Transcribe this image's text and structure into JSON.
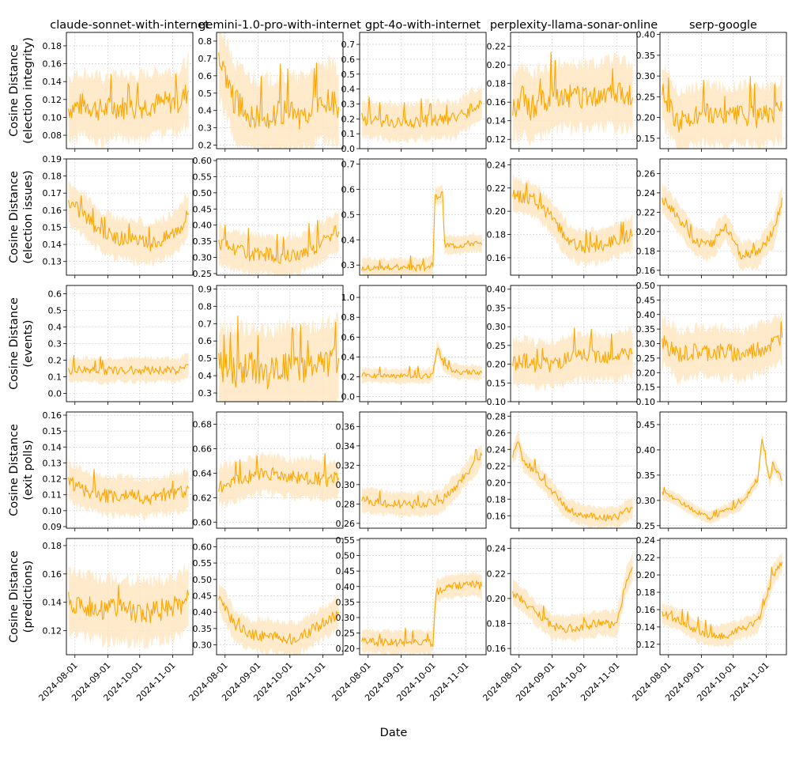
{
  "figure": {
    "xlabel": "Date",
    "columns": [
      "claude-sonnet-with-internet",
      "gemini-1.0-pro-with-internet",
      "gpt-4o-with-internet",
      "perplexity-llama-sonar-online",
      "serp-google"
    ],
    "rows": [
      "Cosine Distance\n(election integrity)",
      "Cosine Distance\n(election issues)",
      "Cosine Distance\n(events)",
      "Cosine Distance\n(exit polls)",
      "Cosine Distance\n(predictions)"
    ],
    "x_ticks": [
      "2024-08-01",
      "2024-09-01",
      "2024-10-01",
      "2024-11-01"
    ],
    "line_color": "#FFA500",
    "band_color": "#FFE8C2"
  },
  "chart_data": [
    {
      "type": "line",
      "col": 0,
      "row": 0,
      "ylim": [
        0.065,
        0.195
      ],
      "yticks": [
        "0.08",
        "0.10",
        "0.12",
        "0.14",
        "0.16",
        "0.18"
      ],
      "x": [
        "2024-07-26",
        "2024-08-10",
        "2024-08-25",
        "2024-09-09",
        "2024-09-24",
        "2024-10-09",
        "2024-10-24",
        "2024-11-08",
        "2024-11-16"
      ],
      "y": [
        0.11,
        0.115,
        0.108,
        0.112,
        0.11,
        0.114,
        0.116,
        0.118,
        0.13
      ],
      "band": 0.03
    },
    {
      "type": "line",
      "col": 1,
      "row": 0,
      "ylim": [
        0.18,
        0.85
      ],
      "yticks": [
        "0.2",
        "0.3",
        "0.4",
        "0.5",
        "0.6",
        "0.7",
        "0.8"
      ],
      "x": [
        "2024-07-26",
        "2024-08-10",
        "2024-08-25",
        "2024-09-09",
        "2024-09-24",
        "2024-10-09",
        "2024-10-24",
        "2024-11-08",
        "2024-11-16"
      ],
      "y": [
        0.7,
        0.45,
        0.38,
        0.36,
        0.38,
        0.37,
        0.42,
        0.45,
        0.42
      ],
      "band": 0.18
    },
    {
      "type": "line",
      "col": 2,
      "row": 0,
      "ylim": [
        0.0,
        0.78
      ],
      "yticks": [
        "0.0",
        "0.1",
        "0.2",
        "0.3",
        "0.4",
        "0.5",
        "0.6",
        "0.7"
      ],
      "x": [
        "2024-07-26",
        "2024-08-10",
        "2024-08-25",
        "2024-09-09",
        "2024-09-24",
        "2024-10-09",
        "2024-10-24",
        "2024-11-08",
        "2024-11-16"
      ],
      "y": [
        0.2,
        0.19,
        0.18,
        0.18,
        0.19,
        0.19,
        0.2,
        0.28,
        0.3
      ],
      "band": 0.1
    },
    {
      "type": "line",
      "col": 3,
      "row": 0,
      "ylim": [
        0.11,
        0.235
      ],
      "yticks": [
        "0.12",
        "0.14",
        "0.16",
        "0.18",
        "0.20",
        "0.22"
      ],
      "x": [
        "2024-07-26",
        "2024-08-05",
        "2024-08-10",
        "2024-09-01",
        "2024-09-15",
        "2024-10-01",
        "2024-10-15",
        "2024-11-01",
        "2024-11-16"
      ],
      "y": [
        0.155,
        0.165,
        0.152,
        0.165,
        0.168,
        0.165,
        0.168,
        0.17,
        0.165
      ],
      "band": 0.03
    },
    {
      "type": "line",
      "col": 4,
      "row": 0,
      "ylim": [
        0.125,
        0.405
      ],
      "yticks": [
        "0.15",
        "0.20",
        "0.25",
        "0.30",
        "0.35",
        "0.40"
      ],
      "x": [
        "2024-07-26",
        "2024-08-10",
        "2024-08-25",
        "2024-09-09",
        "2024-09-24",
        "2024-10-09",
        "2024-10-24",
        "2024-11-08",
        "2024-11-16"
      ],
      "y": [
        0.26,
        0.19,
        0.2,
        0.21,
        0.2,
        0.21,
        0.2,
        0.21,
        0.215
      ],
      "band": 0.06
    },
    {
      "type": "line",
      "col": 0,
      "row": 1,
      "ylim": [
        0.122,
        0.19
      ],
      "yticks": [
        "0.13",
        "0.14",
        "0.15",
        "0.16",
        "0.17",
        "0.18",
        "0.19"
      ],
      "x": [
        "2024-07-26",
        "2024-08-10",
        "2024-08-25",
        "2024-09-09",
        "2024-09-24",
        "2024-10-09",
        "2024-10-24",
        "2024-11-08",
        "2024-11-16"
      ],
      "y": [
        0.165,
        0.157,
        0.148,
        0.144,
        0.142,
        0.14,
        0.143,
        0.15,
        0.158
      ],
      "band": 0.01
    },
    {
      "type": "line",
      "col": 1,
      "row": 1,
      "ylim": [
        0.245,
        0.605
      ],
      "yticks": [
        "0.25",
        "0.30",
        "0.35",
        "0.40",
        "0.45",
        "0.50",
        "0.55",
        "0.60"
      ],
      "x": [
        "2024-07-26",
        "2024-08-10",
        "2024-08-25",
        "2024-09-09",
        "2024-09-24",
        "2024-10-09",
        "2024-10-24",
        "2024-11-08",
        "2024-11-16"
      ],
      "y": [
        0.34,
        0.32,
        0.31,
        0.31,
        0.3,
        0.31,
        0.33,
        0.37,
        0.38
      ],
      "band": 0.05
    },
    {
      "type": "line",
      "col": 2,
      "row": 1,
      "ylim": [
        0.26,
        0.72
      ],
      "yticks": [
        "0.3",
        "0.4",
        "0.5",
        "0.6",
        "0.7"
      ],
      "x": [
        "2024-07-26",
        "2024-08-10",
        "2024-08-25",
        "2024-09-09",
        "2024-09-24",
        "2024-10-01",
        "2024-10-03",
        "2024-10-10",
        "2024-10-12",
        "2024-10-24",
        "2024-11-08",
        "2024-11-16"
      ],
      "y": [
        0.29,
        0.29,
        0.29,
        0.29,
        0.29,
        0.3,
        0.57,
        0.58,
        0.38,
        0.38,
        0.39,
        0.38
      ],
      "band": 0.03
    },
    {
      "type": "line",
      "col": 3,
      "row": 1,
      "ylim": [
        0.145,
        0.245
      ],
      "yticks": [
        "0.16",
        "0.18",
        "0.20",
        "0.22",
        "0.24"
      ],
      "x": [
        "2024-07-26",
        "2024-08-05",
        "2024-08-15",
        "2024-09-01",
        "2024-09-15",
        "2024-10-01",
        "2024-10-15",
        "2024-11-01",
        "2024-11-16"
      ],
      "y": [
        0.215,
        0.212,
        0.21,
        0.195,
        0.175,
        0.168,
        0.17,
        0.175,
        0.18
      ],
      "band": 0.012
    },
    {
      "type": "line",
      "col": 4,
      "row": 1,
      "ylim": [
        0.155,
        0.275
      ],
      "yticks": [
        "0.16",
        "0.18",
        "0.20",
        "0.22",
        "0.24",
        "0.26"
      ],
      "x": [
        "2024-07-26",
        "2024-08-10",
        "2024-08-25",
        "2024-09-09",
        "2024-09-24",
        "2024-10-09",
        "2024-10-24",
        "2024-11-08",
        "2024-11-16"
      ],
      "y": [
        0.235,
        0.215,
        0.19,
        0.185,
        0.205,
        0.175,
        0.178,
        0.2,
        0.235
      ],
      "band": 0.012
    },
    {
      "type": "line",
      "col": 0,
      "row": 2,
      "ylim": [
        -0.05,
        0.65
      ],
      "yticks": [
        "0.0",
        "0.1",
        "0.2",
        "0.3",
        "0.4",
        "0.5",
        "0.6"
      ],
      "x": [
        "2024-07-26",
        "2024-08-10",
        "2024-08-25",
        "2024-09-09",
        "2024-09-24",
        "2024-10-09",
        "2024-10-24",
        "2024-11-08",
        "2024-11-16"
      ],
      "y": [
        0.14,
        0.14,
        0.14,
        0.14,
        0.14,
        0.14,
        0.14,
        0.14,
        0.17
      ],
      "band": 0.06
    },
    {
      "type": "line",
      "col": 1,
      "row": 2,
      "ylim": [
        0.25,
        0.92
      ],
      "yticks": [
        "0.3",
        "0.4",
        "0.5",
        "0.6",
        "0.7",
        "0.8",
        "0.9"
      ],
      "x": [
        "2024-07-26",
        "2024-08-10",
        "2024-08-25",
        "2024-09-09",
        "2024-09-24",
        "2024-10-09",
        "2024-10-24",
        "2024-11-08",
        "2024-11-16"
      ],
      "y": [
        0.45,
        0.42,
        0.45,
        0.4,
        0.45,
        0.43,
        0.45,
        0.47,
        0.5
      ],
      "band": 0.2
    },
    {
      "type": "line",
      "col": 2,
      "row": 2,
      "ylim": [
        -0.05,
        1.12
      ],
      "yticks": [
        "0.0",
        "0.2",
        "0.4",
        "0.6",
        "0.8",
        "1.0"
      ],
      "x": [
        "2024-07-26",
        "2024-08-10",
        "2024-08-25",
        "2024-09-09",
        "2024-09-24",
        "2024-10-01",
        "2024-10-05",
        "2024-10-12",
        "2024-10-24",
        "2024-11-08",
        "2024-11-16"
      ],
      "y": [
        0.22,
        0.21,
        0.21,
        0.21,
        0.21,
        0.22,
        0.5,
        0.3,
        0.25,
        0.25,
        0.24
      ],
      "band": 0.06
    },
    {
      "type": "line",
      "col": 3,
      "row": 2,
      "ylim": [
        0.1,
        0.41
      ],
      "yticks": [
        "0.10",
        "0.15",
        "0.20",
        "0.25",
        "0.30",
        "0.35",
        "0.40"
      ],
      "x": [
        "2024-07-26",
        "2024-08-05",
        "2024-08-15",
        "2024-09-01",
        "2024-09-15",
        "2024-10-01",
        "2024-10-15",
        "2024-11-01",
        "2024-11-16"
      ],
      "y": [
        0.2,
        0.21,
        0.2,
        0.2,
        0.21,
        0.22,
        0.22,
        0.22,
        0.23
      ],
      "band": 0.05
    },
    {
      "type": "line",
      "col": 4,
      "row": 2,
      "ylim": [
        0.1,
        0.5
      ],
      "yticks": [
        "0.10",
        "0.15",
        "0.20",
        "0.25",
        "0.30",
        "0.35",
        "0.40",
        "0.45",
        "0.50"
      ],
      "x": [
        "2024-07-26",
        "2024-08-10",
        "2024-08-25",
        "2024-09-09",
        "2024-09-24",
        "2024-10-09",
        "2024-10-24",
        "2024-11-08",
        "2024-11-16"
      ],
      "y": [
        0.31,
        0.26,
        0.27,
        0.27,
        0.27,
        0.26,
        0.28,
        0.3,
        0.32
      ],
      "band": 0.07
    },
    {
      "type": "line",
      "col": 0,
      "row": 3,
      "ylim": [
        0.089,
        0.162
      ],
      "yticks": [
        "0.09",
        "0.10",
        "0.11",
        "0.12",
        "0.13",
        "0.14",
        "0.15",
        "0.16"
      ],
      "x": [
        "2024-07-26",
        "2024-08-10",
        "2024-08-25",
        "2024-09-09",
        "2024-09-24",
        "2024-10-09",
        "2024-10-24",
        "2024-11-08",
        "2024-11-16"
      ],
      "y": [
        0.118,
        0.113,
        0.11,
        0.109,
        0.109,
        0.108,
        0.11,
        0.112,
        0.114
      ],
      "band": 0.01
    },
    {
      "type": "line",
      "col": 1,
      "row": 3,
      "ylim": [
        0.595,
        0.69
      ],
      "yticks": [
        "0.60",
        "0.62",
        "0.64",
        "0.66",
        "0.68"
      ],
      "x": [
        "2024-07-26",
        "2024-08-10",
        "2024-08-25",
        "2024-09-09",
        "2024-09-24",
        "2024-10-09",
        "2024-10-24",
        "2024-11-08",
        "2024-11-16"
      ],
      "y": [
        0.63,
        0.632,
        0.638,
        0.64,
        0.637,
        0.636,
        0.636,
        0.634,
        0.636
      ],
      "band": 0.013
    },
    {
      "type": "line",
      "col": 2,
      "row": 3,
      "ylim": [
        0.255,
        0.375
      ],
      "yticks": [
        "0.26",
        "0.28",
        "0.30",
        "0.32",
        "0.34",
        "0.36"
      ],
      "x": [
        "2024-07-26",
        "2024-08-10",
        "2024-08-25",
        "2024-09-09",
        "2024-09-24",
        "2024-10-09",
        "2024-10-24",
        "2024-11-08",
        "2024-11-16"
      ],
      "y": [
        0.285,
        0.282,
        0.28,
        0.28,
        0.28,
        0.283,
        0.3,
        0.32,
        0.33
      ],
      "band": 0.01
    },
    {
      "type": "line",
      "col": 3,
      "row": 3,
      "ylim": [
        0.145,
        0.285
      ],
      "yticks": [
        "0.16",
        "0.18",
        "0.20",
        "0.22",
        "0.24",
        "0.26",
        "0.28"
      ],
      "x": [
        "2024-07-26",
        "2024-07-31",
        "2024-08-05",
        "2024-08-15",
        "2024-09-01",
        "2024-09-15",
        "2024-10-01",
        "2024-10-15",
        "2024-11-01",
        "2024-11-10",
        "2024-11-16"
      ],
      "y": [
        0.23,
        0.25,
        0.225,
        0.215,
        0.19,
        0.168,
        0.16,
        0.158,
        0.158,
        0.165,
        0.17
      ],
      "band": 0.01
    },
    {
      "type": "line",
      "col": 4,
      "row": 3,
      "ylim": [
        0.245,
        0.475
      ],
      "yticks": [
        "0.25",
        "0.30",
        "0.35",
        "0.40",
        "0.45"
      ],
      "x": [
        "2024-07-26",
        "2024-08-10",
        "2024-08-25",
        "2024-09-09",
        "2024-09-24",
        "2024-10-09",
        "2024-10-24",
        "2024-10-28",
        "2024-11-04",
        "2024-11-08",
        "2024-11-16"
      ],
      "y": [
        0.315,
        0.3,
        0.28,
        0.265,
        0.28,
        0.295,
        0.34,
        0.42,
        0.34,
        0.37,
        0.34
      ],
      "band": 0.01
    },
    {
      "type": "line",
      "col": 0,
      "row": 4,
      "ylim": [
        0.103,
        0.185
      ],
      "yticks": [
        "0.12",
        "0.14",
        "0.16",
        "0.18"
      ],
      "x": [
        "2024-07-26",
        "2024-08-10",
        "2024-08-25",
        "2024-09-09",
        "2024-09-24",
        "2024-10-09",
        "2024-10-24",
        "2024-11-08",
        "2024-11-16"
      ],
      "y": [
        0.14,
        0.138,
        0.135,
        0.134,
        0.134,
        0.133,
        0.135,
        0.138,
        0.145
      ],
      "band": 0.018
    },
    {
      "type": "line",
      "col": 1,
      "row": 4,
      "ylim": [
        0.27,
        0.625
      ],
      "yticks": [
        "0.30",
        "0.35",
        "0.40",
        "0.45",
        "0.50",
        "0.55",
        "0.60"
      ],
      "x": [
        "2024-07-26",
        "2024-08-10",
        "2024-08-25",
        "2024-09-09",
        "2024-09-24",
        "2024-10-09",
        "2024-10-24",
        "2024-11-08",
        "2024-11-16"
      ],
      "y": [
        0.45,
        0.36,
        0.33,
        0.33,
        0.32,
        0.32,
        0.35,
        0.38,
        0.4
      ],
      "band": 0.04
    },
    {
      "type": "line",
      "col": 2,
      "row": 4,
      "ylim": [
        0.18,
        0.555
      ],
      "yticks": [
        "0.20",
        "0.25",
        "0.30",
        "0.35",
        "0.40",
        "0.45",
        "0.50",
        "0.55"
      ],
      "x": [
        "2024-07-26",
        "2024-08-10",
        "2024-08-25",
        "2024-09-09",
        "2024-09-24",
        "2024-10-01",
        "2024-10-04",
        "2024-10-12",
        "2024-10-24",
        "2024-11-08",
        "2024-11-16"
      ],
      "y": [
        0.225,
        0.22,
        0.22,
        0.22,
        0.22,
        0.22,
        0.38,
        0.4,
        0.4,
        0.41,
        0.4
      ],
      "band": 0.03
    },
    {
      "type": "line",
      "col": 3,
      "row": 4,
      "ylim": [
        0.155,
        0.248
      ],
      "yticks": [
        "0.16",
        "0.18",
        "0.20",
        "0.22",
        "0.24"
      ],
      "x": [
        "2024-07-26",
        "2024-08-05",
        "2024-08-15",
        "2024-09-01",
        "2024-09-15",
        "2024-10-01",
        "2024-10-15",
        "2024-11-01",
        "2024-11-10",
        "2024-11-16"
      ],
      "y": [
        0.205,
        0.198,
        0.19,
        0.178,
        0.176,
        0.178,
        0.18,
        0.18,
        0.215,
        0.225
      ],
      "band": 0.008
    },
    {
      "type": "line",
      "col": 4,
      "row": 4,
      "ylim": [
        0.108,
        0.242
      ],
      "yticks": [
        "0.12",
        "0.14",
        "0.16",
        "0.18",
        "0.20",
        "0.22",
        "0.24"
      ],
      "x": [
        "2024-07-26",
        "2024-08-10",
        "2024-08-25",
        "2024-09-09",
        "2024-09-24",
        "2024-10-09",
        "2024-10-24",
        "2024-11-08",
        "2024-11-16"
      ],
      "y": [
        0.155,
        0.148,
        0.138,
        0.13,
        0.13,
        0.138,
        0.145,
        0.2,
        0.215
      ],
      "band": 0.01
    }
  ]
}
